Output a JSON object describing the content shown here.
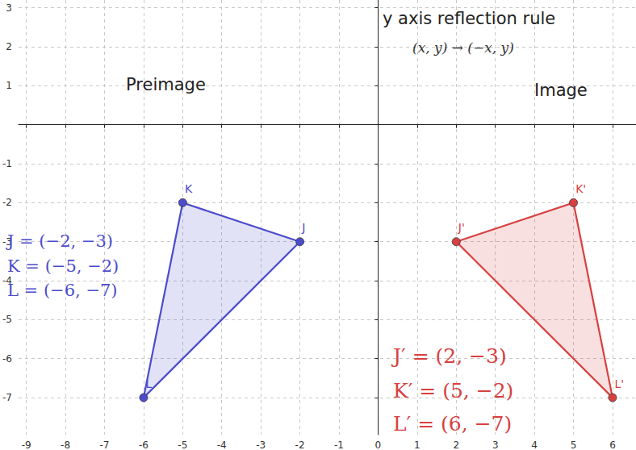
{
  "chart_data": {
    "type": "scatter",
    "title": "y axis reflection rule",
    "subtitle": "(x, y) → (−x, y)",
    "xlim": [
      -9.2,
      6.6
    ],
    "ylim": [
      -7.95,
      3.2
    ],
    "xticks": [
      -9,
      -8,
      -7,
      -6,
      -5,
      -4,
      -3,
      -2,
      -1,
      0,
      1,
      2,
      3,
      4,
      5,
      6
    ],
    "yticks": [
      -7,
      -6,
      -5,
      -4,
      -3,
      -2,
      -1,
      0,
      1,
      2,
      3
    ],
    "grid": true,
    "series": [
      {
        "name": "Preimage",
        "color": "#4b4bcc",
        "labels": [
          "J",
          "K",
          "L"
        ],
        "x": [
          -2,
          -5,
          -6
        ],
        "y": [
          -3,
          -2,
          -7
        ],
        "point_texts": [
          "J = (−2, −3)",
          "K = (−5, −2)",
          "L = (−6, −7)"
        ]
      },
      {
        "name": "Image",
        "color": "#d84040",
        "labels": [
          "J'",
          "K'",
          "L'"
        ],
        "x": [
          2,
          5,
          6
        ],
        "y": [
          -3,
          -2,
          -7
        ],
        "point_texts": [
          "J′ = (2, −3)",
          "K′ = (5, −2)",
          "L′ = (6, −7)"
        ]
      }
    ]
  }
}
